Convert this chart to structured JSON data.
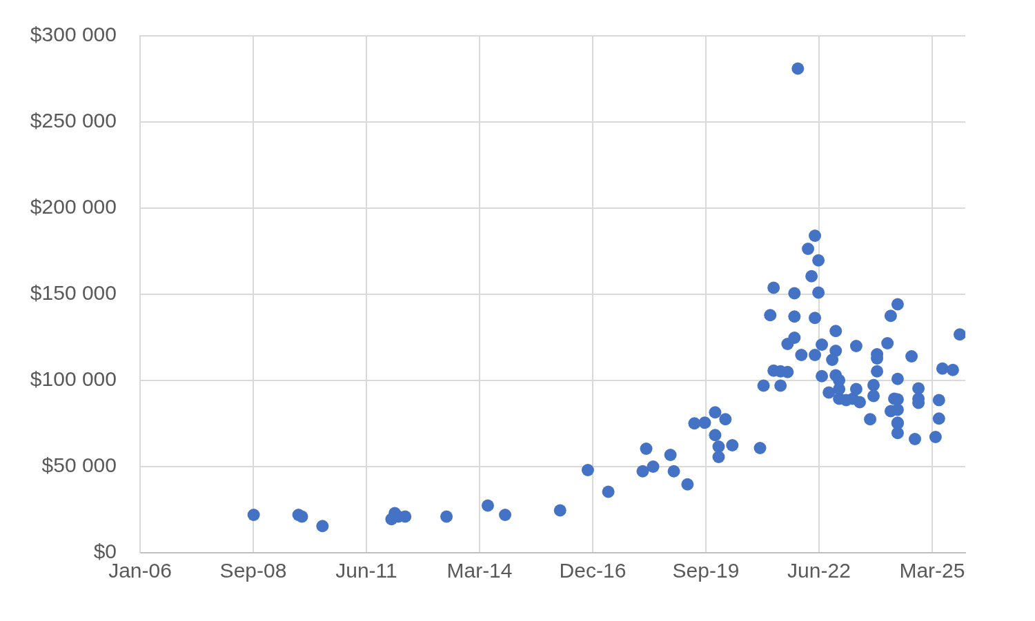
{
  "chart_data": {
    "type": "scatter",
    "marker": "circle",
    "grid": true,
    "xlim": [
      "2006-01-01",
      "2025-12-20"
    ],
    "xticks": [
      {
        "value": "2006-01-01",
        "label": "Jan-06"
      },
      {
        "value": "2008-09-27",
        "label": "Sep-08"
      },
      {
        "value": "2011-06-24",
        "label": "Jun-11"
      },
      {
        "value": "2014-03-20",
        "label": "Mar-14"
      },
      {
        "value": "2016-12-14",
        "label": "Dec-16"
      },
      {
        "value": "2019-09-10",
        "label": "Sep-19"
      },
      {
        "value": "2022-06-06",
        "label": "Jun-22"
      },
      {
        "value": "2025-03-02",
        "label": "Mar-25"
      }
    ],
    "ylim": [
      0,
      300000
    ],
    "yticks": [
      {
        "value": 0,
        "label": "$0"
      },
      {
        "value": 50000,
        "label": "$50 000"
      },
      {
        "value": 100000,
        "label": "$100 000"
      },
      {
        "value": 150000,
        "label": "$150 000"
      },
      {
        "value": 200000,
        "label": "$200 000"
      },
      {
        "value": 250000,
        "label": "$250 000"
      },
      {
        "value": 300000,
        "label": "$300 000"
      }
    ],
    "series": [
      {
        "color": "#4472c4",
        "x": [
          "2008-10",
          "2009-11",
          "2009-12",
          "2010-06",
          "2012-03",
          "2012-02",
          "2012-04",
          "2012-06",
          "2013-06",
          "2014-06",
          "2014-11",
          "2016-03",
          "2016-11",
          "2017-05",
          "2018-04",
          "2018-11",
          "2018-06",
          "2018-03",
          "2018-12",
          "2019-04",
          "2019-06",
          "2019-09",
          "2019-12",
          "2020-03",
          "2019-12",
          "2020-01",
          "2020-01",
          "2020-05",
          "2021-01",
          "2021-12",
          "2022-05",
          "2022-03",
          "2022-06",
          "2022-04",
          "2021-05",
          "2021-11",
          "2022-06",
          "2021-04",
          "2021-11",
          "2022-05",
          "2022-11",
          "2021-11",
          "2021-09",
          "2022-01",
          "2022-05",
          "2022-07",
          "2022-11",
          "2022-10",
          "2023-05",
          "2021-05",
          "2021-09",
          "2021-07",
          "2021-02",
          "2021-07",
          "2022-07",
          "2022-11",
          "2022-12",
          "2022-09",
          "2022-12",
          "2023-04",
          "2024-05",
          "2024-03",
          "2025-11",
          "2024-02",
          "2024-09",
          "2023-11",
          "2023-11",
          "2023-11",
          "2025-06",
          "2025-09",
          "2024-05",
          "2022-12",
          "2023-05",
          "2023-02",
          "2023-06",
          "2023-10",
          "2023-10",
          "2023-09",
          "2024-04",
          "2024-05",
          "2024-03",
          "2024-05",
          "2024-05",
          "2024-05",
          "2024-05",
          "2024-11",
          "2024-11",
          "2024-11",
          "2025-05",
          "2025-05",
          "2025-04",
          "2024-10"
        ],
        "values": [
          22000,
          22000,
          21000,
          15500,
          23000,
          19500,
          21000,
          21000,
          21000,
          27400,
          22000,
          24600,
          48000,
          35400,
          60400,
          56800,
          50000,
          47300,
          47300,
          39700,
          75100,
          75500,
          81500,
          77500,
          68300,
          61600,
          55600,
          62400,
          60800,
          281000,
          184000,
          176400,
          169700,
          160500,
          153800,
          150600,
          151000,
          137900,
          137100,
          136300,
          128700,
          124800,
          121200,
          114800,
          114800,
          120800,
          117200,
          112000,
          120000,
          105700,
          104900,
          105300,
          97000,
          97000,
          102500,
          103000,
          100100,
          93000,
          89400,
          89400,
          144200,
          137500,
          126700,
          121600,
          114000,
          115200,
          112800,
          105300,
          106900,
          106100,
          100900,
          95000,
          95000,
          88600,
          87400,
          97300,
          91000,
          77500,
          89400,
          89000,
          82200,
          83000,
          75500,
          69500,
          75100,
          95400,
          89400,
          87000,
          88600,
          77900,
          67200,
          66000
        ]
      }
    ]
  }
}
